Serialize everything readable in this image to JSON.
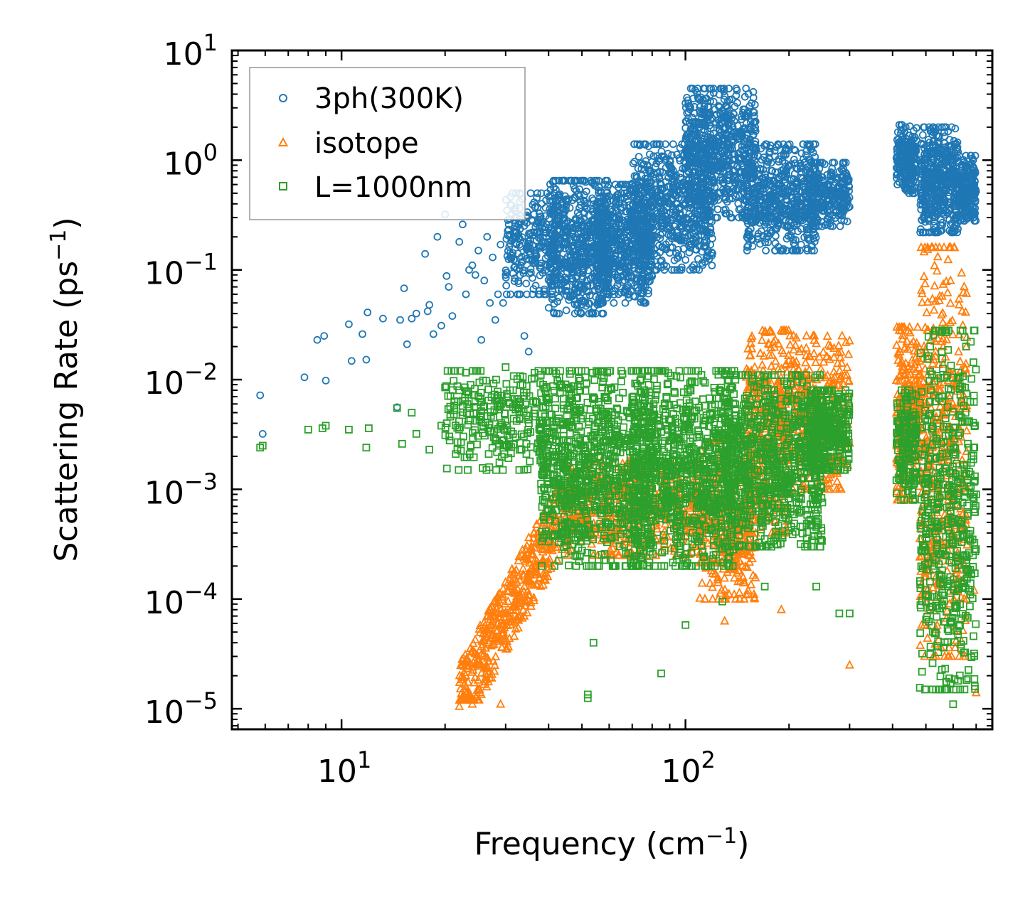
{
  "chart_data": {
    "type": "scatter",
    "xscale": "log",
    "yscale": "log",
    "xlim": [
      4.8,
      780
    ],
    "ylim": [
      6.5e-06,
      10
    ],
    "xlabel": {
      "base": "Frequency (cm",
      "sup": "−1",
      "tail": ")"
    },
    "ylabel": {
      "base": "Scattering Rate (ps",
      "sup": "−1",
      "tail": ")"
    },
    "x_ticks": [
      {
        "value": 10,
        "base": "10",
        "exp": "1"
      },
      {
        "value": 100,
        "base": "10",
        "exp": "2"
      }
    ],
    "y_ticks": [
      {
        "value": 10,
        "base": "10",
        "exp": "1"
      },
      {
        "value": 1,
        "base": "10",
        "exp": "0"
      },
      {
        "value": 0.1,
        "base": "10",
        "exp": "−1"
      },
      {
        "value": 0.01,
        "base": "10",
        "exp": "−2"
      },
      {
        "value": 0.001,
        "base": "10",
        "exp": "−3"
      },
      {
        "value": 0.0001,
        "base": "10",
        "exp": "−4"
      },
      {
        "value": 1e-05,
        "base": "10",
        "exp": "−5"
      }
    ],
    "legend_position": "top-left",
    "series": [
      {
        "name": "3ph(300K)",
        "marker": "circle",
        "color": "#1f77b4",
        "points": [
          [
            5.8,
            0.0072
          ],
          [
            5.9,
            0.0032
          ],
          [
            7.8,
            0.0105
          ],
          [
            8.5,
            0.023
          ],
          [
            8.9,
            0.025
          ],
          [
            9.0,
            0.0098
          ],
          [
            10.5,
            0.032
          ],
          [
            10.7,
            0.0148
          ],
          [
            11.5,
            0.026
          ],
          [
            11.8,
            0.0152
          ],
          [
            11.9,
            0.041
          ],
          [
            13.2,
            0.036
          ],
          [
            14.5,
            0.0056
          ],
          [
            14.8,
            0.035
          ],
          [
            15.2,
            0.068
          ],
          [
            15.5,
            0.021
          ],
          [
            16.0,
            0.036
          ],
          [
            16.5,
            0.04
          ],
          [
            17.5,
            0.14
          ],
          [
            17.8,
            0.042
          ],
          [
            18.0,
            0.048
          ],
          [
            18.5,
            0.026
          ],
          [
            19.0,
            0.2
          ],
          [
            19.5,
            0.031
          ],
          [
            20.0,
            0.32
          ],
          [
            20.2,
            0.088
          ],
          [
            20.5,
            0.07
          ],
          [
            21.0,
            0.038
          ],
          [
            22.0,
            0.18
          ],
          [
            22.5,
            0.26
          ],
          [
            23.0,
            0.06
          ],
          [
            23.5,
            0.1
          ],
          [
            24.0,
            0.11
          ],
          [
            24.5,
            0.09
          ],
          [
            25.0,
            0.15
          ],
          [
            25.5,
            0.023
          ],
          [
            26.0,
            0.08
          ],
          [
            26.5,
            0.2
          ],
          [
            27.0,
            0.05
          ],
          [
            27.5,
            0.13
          ],
          [
            28.0,
            0.035
          ],
          [
            28.5,
            0.06
          ],
          [
            29.0,
            0.17
          ],
          [
            29.5,
            0.05
          ],
          [
            30.0,
            0.09
          ],
          [
            31.0,
            0.13
          ],
          [
            32.0,
            0.2
          ],
          [
            33.0,
            0.31
          ],
          [
            34.0,
            0.025
          ],
          [
            35.0,
            0.018
          ]
        ],
        "bands": [
          {
            "x": [
              30,
              42
            ],
            "y": [
              0.06,
              0.5
            ],
            "count": 260
          },
          {
            "x": [
              40,
              60
            ],
            "y": [
              0.04,
              0.65
            ],
            "count": 620
          },
          {
            "x": [
              55,
              80
            ],
            "y": [
              0.05,
              0.6
            ],
            "count": 560
          },
          {
            "x": [
              70,
              120
            ],
            "y": [
              0.1,
              1.4
            ],
            "count": 620
          },
          {
            "x": [
              100,
              160
            ],
            "y": [
              0.3,
              4.5
            ],
            "count": 700
          },
          {
            "x": [
              150,
              240
            ],
            "y": [
              0.15,
              1.4
            ],
            "count": 560
          },
          {
            "x": [
              230,
              300
            ],
            "y": [
              0.25,
              0.95
            ],
            "count": 260
          },
          {
            "x": [
              410,
              470
            ],
            "y": [
              0.5,
              2.1
            ],
            "count": 220
          },
          {
            "x": [
              480,
              620
            ],
            "y": [
              0.22,
              2.0
            ],
            "count": 460
          },
          {
            "x": [
              620,
              700
            ],
            "y": [
              0.28,
              1.1
            ],
            "count": 200
          }
        ]
      },
      {
        "name": "isotope",
        "marker": "triangle",
        "color": "#ff7f0e",
        "points": [
          [
            22.0,
            1.05e-05
          ],
          [
            24.0,
            1.1e-05
          ],
          [
            29.0,
            1.1e-05
          ],
          [
            41.0,
            0.0002
          ],
          [
            125.0,
            0.0018
          ],
          [
            130.0,
            6.3e-05
          ],
          [
            190.0,
            8e-05
          ],
          [
            300.0,
            2.5e-05
          ],
          [
            420.0,
            0.00092
          ],
          [
            690.0,
            0.00012
          ],
          [
            700.0,
            1.4e-05
          ]
        ],
        "bands": [
          {
            "x": [
              22,
              48
            ],
            "y": [
              1.2e-05,
              0.001
            ],
            "count": 520,
            "trend": true
          },
          {
            "x": [
              45,
              110
            ],
            "y": [
              0.00025,
              0.0018
            ],
            "count": 520
          },
          {
            "x": [
              110,
              160
            ],
            "y": [
              0.0001,
              0.0028
            ],
            "count": 380
          },
          {
            "x": [
              150,
              200
            ],
            "y": [
              0.0004,
              0.028
            ],
            "count": 360
          },
          {
            "x": [
              200,
              300
            ],
            "y": [
              0.001,
              0.025
            ],
            "count": 320
          },
          {
            "x": [
              410,
              480
            ],
            "y": [
              0.0008,
              0.03
            ],
            "count": 240
          },
          {
            "x": [
              480,
              660
            ],
            "y": [
              3e-05,
              0.16
            ],
            "count": 460
          }
        ]
      },
      {
        "name": "L=1000nm",
        "marker": "square",
        "color": "#2ca02c",
        "points": [
          [
            5.8,
            0.0024
          ],
          [
            5.9,
            0.0025
          ],
          [
            8.0,
            0.0035
          ],
          [
            8.8,
            0.0036
          ],
          [
            9.0,
            0.0038
          ],
          [
            10.5,
            0.0035
          ],
          [
            11.8,
            0.0024
          ],
          [
            12.0,
            0.0036
          ],
          [
            14.5,
            0.0055
          ],
          [
            15.0,
            0.0026
          ],
          [
            16.0,
            0.005
          ],
          [
            16.5,
            0.0032
          ],
          [
            18.0,
            0.0023
          ],
          [
            19.5,
            0.0038
          ],
          [
            20.0,
            0.0085
          ],
          [
            22.0,
            0.008
          ],
          [
            25.0,
            0.007
          ],
          [
            28.0,
            0.0028
          ],
          [
            30.0,
            0.013
          ],
          [
            52.0,
            1.35e-05
          ],
          [
            52.0,
            1.25e-05
          ],
          [
            54.0,
            4e-05
          ],
          [
            85.0,
            2.1e-05
          ],
          [
            100.0,
            5.8e-05
          ],
          [
            128.0,
            9.5e-05
          ],
          [
            170.0,
            0.00013
          ],
          [
            240.0,
            0.00013
          ],
          [
            280.0,
            7.4e-05
          ],
          [
            300.0,
            7.4e-05
          ],
          [
            600.0,
            1.1e-05
          ],
          [
            620.0,
            1.8e-05
          ],
          [
            690.0,
            0.0009
          ],
          [
            700.0,
            0.0009
          ]
        ],
        "bands": [
          {
            "x": [
              20,
              40
            ],
            "y": [
              0.0015,
              0.012
            ],
            "count": 260
          },
          {
            "x": [
              38,
              80
            ],
            "y": [
              0.0002,
              0.012
            ],
            "count": 900
          },
          {
            "x": [
              70,
              140
            ],
            "y": [
              0.0002,
              0.012
            ],
            "count": 900
          },
          {
            "x": [
              130,
              250
            ],
            "y": [
              0.0003,
              0.011
            ],
            "count": 800
          },
          {
            "x": [
              230,
              300
            ],
            "y": [
              0.0015,
              0.008
            ],
            "count": 300
          },
          {
            "x": [
              410,
              470
            ],
            "y": [
              0.0008,
              0.008
            ],
            "count": 160
          },
          {
            "x": [
              480,
              700
            ],
            "y": [
              1.5e-05,
              0.028
            ],
            "count": 520
          }
        ]
      }
    ]
  }
}
